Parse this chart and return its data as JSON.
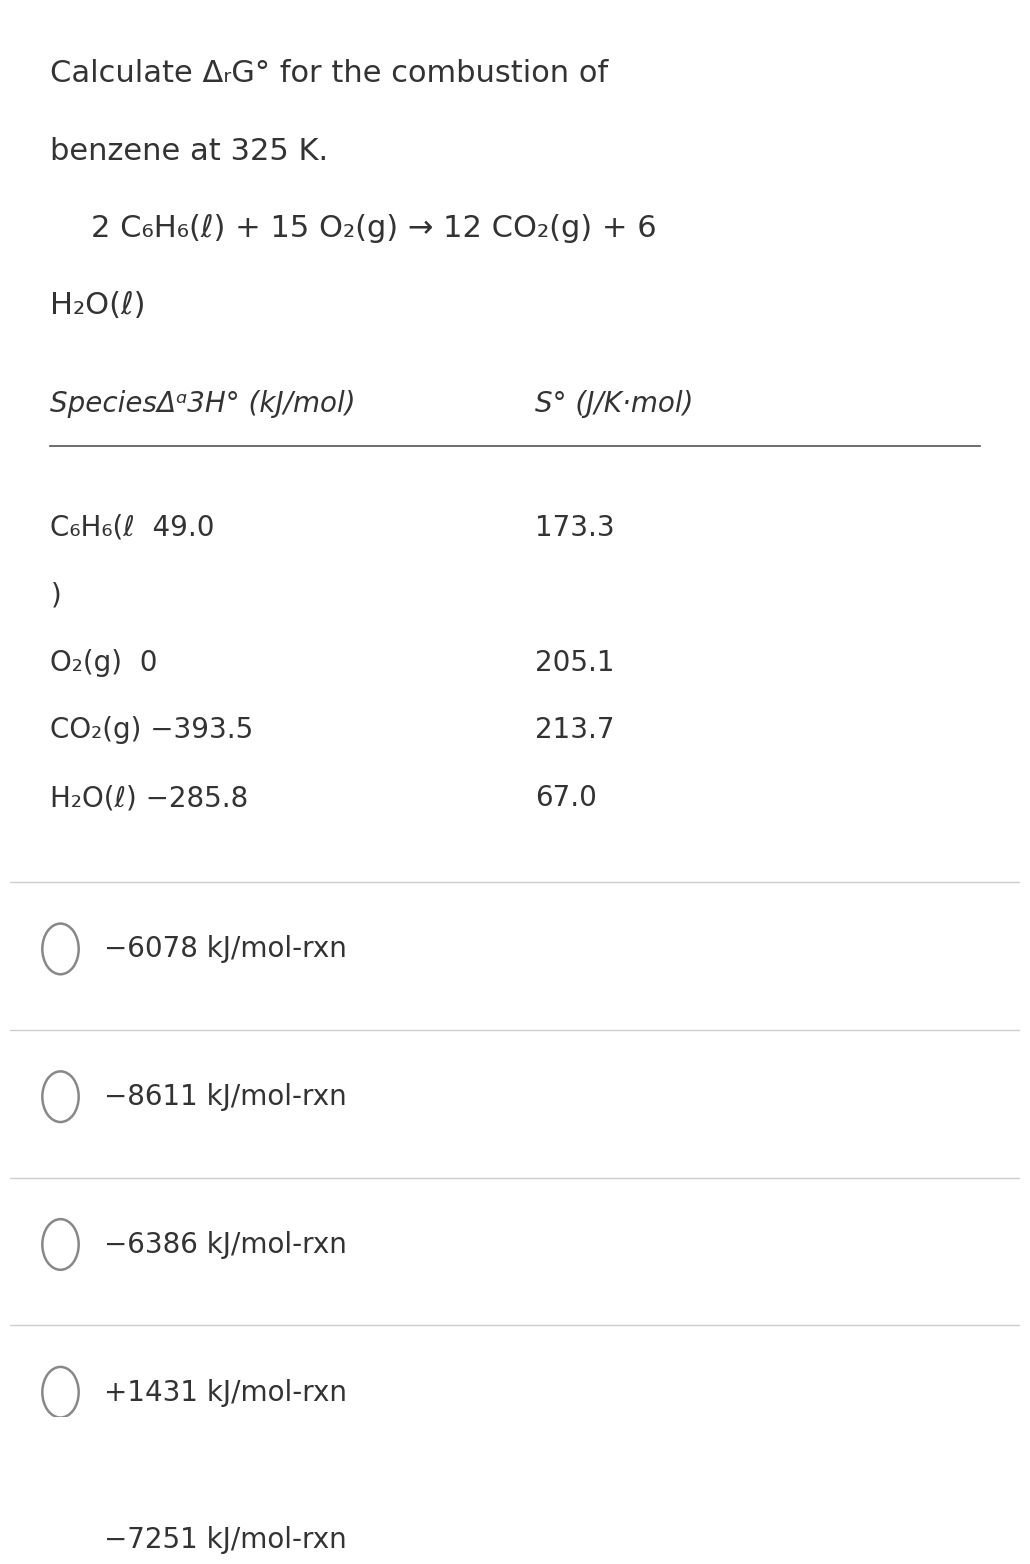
{
  "bg_color": "#ffffff",
  "title_line1": "Calculate ΔᵣG° for the combustion of",
  "title_line2": "benzene at 325 K.",
  "equation_line1": "2 C₆H₆(ℓ) + 15 O₂(g) → 12 CO₂(g) + 6",
  "equation_line2": "H₂O(ℓ)",
  "table_header_col1": "SpeciesΔᵅ3H° (kJ/mol)",
  "table_header_col2": "S° (J/K·mol)",
  "table_rows": [
    {
      "species": "C₆H₆(ℓ  49.0",
      "s": "173.3"
    },
    {
      "species": ")",
      "s": ""
    },
    {
      "species": "O₂(g)  0",
      "s": "205.1"
    },
    {
      "species": "CO₂(g) −393.5",
      "s": "213.7"
    },
    {
      "species": "H₂O(ℓ) −285.8",
      "s": "67.0"
    }
  ],
  "choices": [
    "−6078 kJ/mol-rxn",
    "−8611 kJ/mol-rxn",
    "−6386 kJ/mol-rxn",
    "+1431 kJ/mol-rxn",
    "−7251 kJ/mol-rxn"
  ],
  "text_color": "#333333",
  "line_color": "#cccccc",
  "circle_color": "#888888",
  "title_fontsize": 22,
  "body_fontsize": 20,
  "small_fontsize": 18
}
